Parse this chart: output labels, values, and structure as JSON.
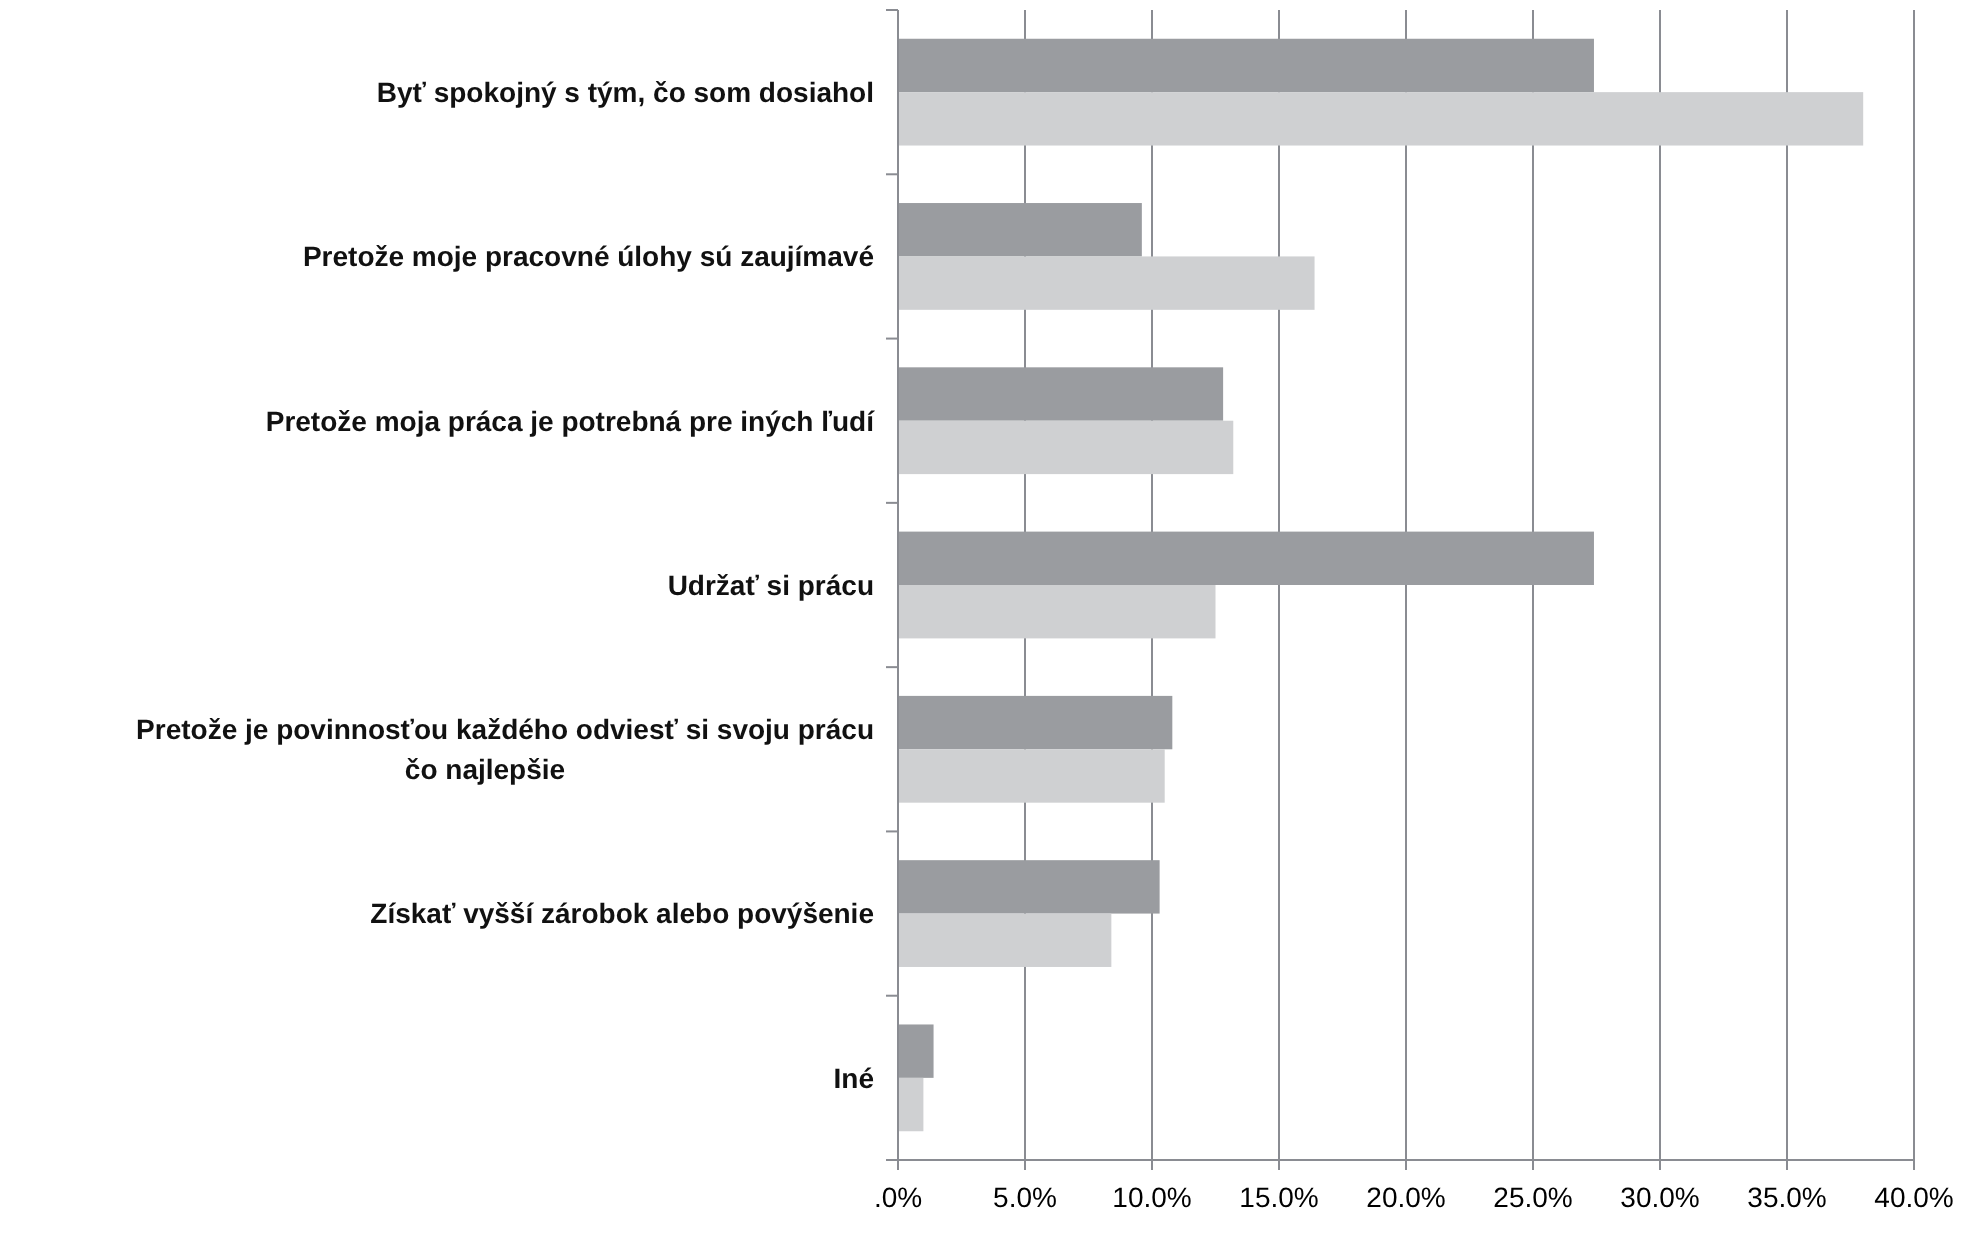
{
  "chart_data": {
    "type": "bar",
    "orientation": "horizontal",
    "categories": [
      "Byť spokojný s tým, čo som dosiahol",
      "Pretože moje pracovné úlohy sú zaujímavé",
      "Pretože moja práca je potrebná pre iných ľudí",
      "Udržať si prácu",
      "Pretože je povinnosťou každého odviesť si svoju prácu čo najlepšie",
      "Získať vyšší zárobok alebo povýšenie",
      "Iné"
    ],
    "series": [
      {
        "color": "#9a9ca0",
        "values": [
          27.4,
          9.6,
          12.8,
          27.4,
          10.8,
          10.3,
          1.4
        ]
      },
      {
        "color": "#cfd0d2",
        "values": [
          38.0,
          16.4,
          13.2,
          12.5,
          10.5,
          8.4,
          1.0
        ]
      }
    ],
    "xlim": [
      0,
      40
    ],
    "xticks": [
      {
        "value": 0,
        "label": ".0%"
      },
      {
        "value": 5,
        "label": "5.0%"
      },
      {
        "value": 10,
        "label": "10.0%"
      },
      {
        "value": 15,
        "label": "15.0%"
      },
      {
        "value": 20,
        "label": "20.0%"
      },
      {
        "value": 25,
        "label": "25.0%"
      },
      {
        "value": 30,
        "label": "30.0%"
      },
      {
        "value": 35,
        "label": "35.0%"
      },
      {
        "value": 40,
        "label": "40.0%"
      }
    ],
    "grid": "x"
  }
}
